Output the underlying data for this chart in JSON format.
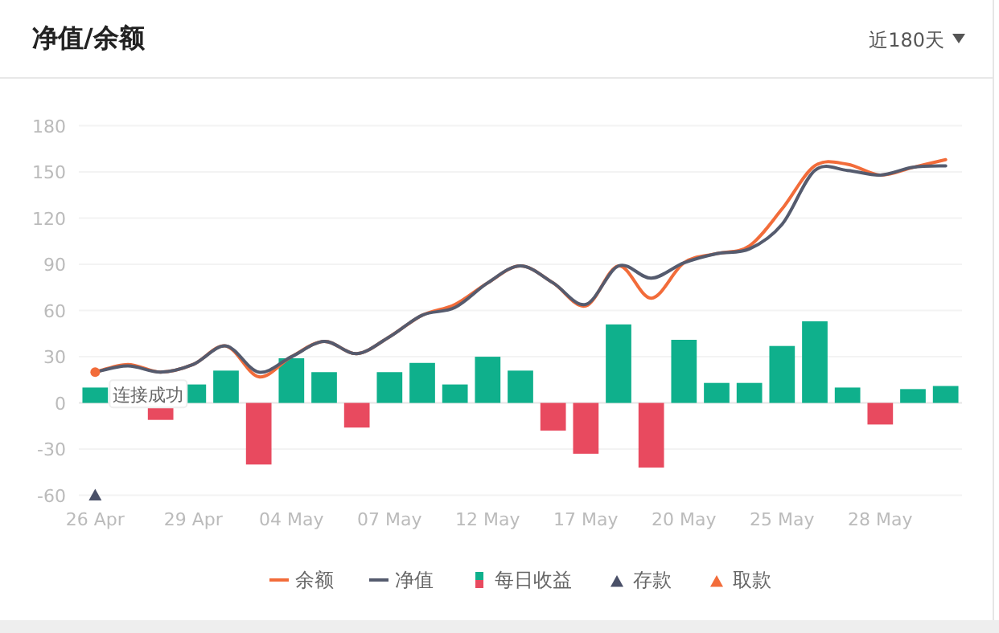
{
  "chart_data": {
    "type": "bar",
    "title": "净值/余额",
    "subtitle": "近180天",
    "categories": [
      "26 Apr",
      null,
      null,
      "29 Apr",
      null,
      null,
      "04 May",
      null,
      null,
      "07 May",
      null,
      null,
      "12 May",
      null,
      null,
      "17 May",
      null,
      null,
      "20 May",
      null,
      null,
      "25 May",
      null,
      null,
      "28 May",
      null,
      null
    ],
    "series": [
      {
        "name": "余额",
        "type": "line",
        "color": "#f26c3a",
        "values": [
          20,
          25,
          20,
          25,
          37,
          17,
          30,
          40,
          32,
          43,
          57,
          64,
          78,
          89,
          78,
          63,
          89,
          68,
          91,
          97,
          102,
          126,
          154,
          155,
          148,
          153,
          158
        ]
      },
      {
        "name": "净值",
        "type": "line",
        "color": "#555b6e",
        "values": [
          20,
          24,
          20,
          25,
          37,
          20,
          30,
          40,
          32,
          43,
          57,
          62,
          78,
          89,
          78,
          64,
          89,
          81,
          91,
          97,
          100,
          116,
          151,
          151,
          148,
          153,
          154
        ]
      },
      {
        "name": "每日收益",
        "colors": [
          "#0fb08c",
          null,
          "#e84a5f",
          "#0fb08c",
          "#0fb08c",
          "#e84a5f",
          "#0fb08c",
          "#0fb08c",
          "#e84a5f",
          "#0fb08c",
          "#0fb08c",
          "#0fb08c",
          "#0fb08c",
          "#0fb08c",
          "#e84a5f",
          "#e84a5f",
          "#0fb08c",
          "#e84a5f",
          "#0fb08c",
          "#0fb08c",
          "#0fb08c",
          "#0fb08c",
          "#0fb08c",
          "#0fb08c",
          "#e84a5f",
          "#0fb08c",
          "#0fb08c"
        ],
        "values": [
          10,
          null,
          -11,
          12,
          21,
          -40,
          29,
          20,
          -16,
          20,
          26,
          12,
          30,
          21,
          -18,
          -33,
          51,
          -42,
          41,
          13,
          13,
          37,
          53,
          10,
          -14,
          9,
          11
        ]
      },
      {
        "name": "存款",
        "type": "scatter",
        "marker": "triangle",
        "color": "#4a5068",
        "x": [
          "26 Apr"
        ],
        "values": [
          -60
        ]
      },
      {
        "name": "取款",
        "type": "scatter",
        "marker": "triangle",
        "color": "#f26c3a",
        "values": [
          null,
          null,
          null,
          null,
          null,
          null,
          null,
          null,
          null,
          null,
          null,
          null,
          null,
          null,
          null,
          null,
          null,
          null,
          null,
          null,
          null,
          null,
          null,
          null,
          null,
          null,
          null
        ]
      }
    ],
    "ylim": [
      -60,
      180
    ],
    "yticks": [
      -60,
      -30,
      0,
      30,
      60,
      90,
      120,
      150,
      180
    ],
    "grid": "y",
    "legend": "bottom",
    "annotations": [
      {
        "text": "连接成功",
        "x": "26 Apr",
        "y": 20
      }
    ]
  }
}
